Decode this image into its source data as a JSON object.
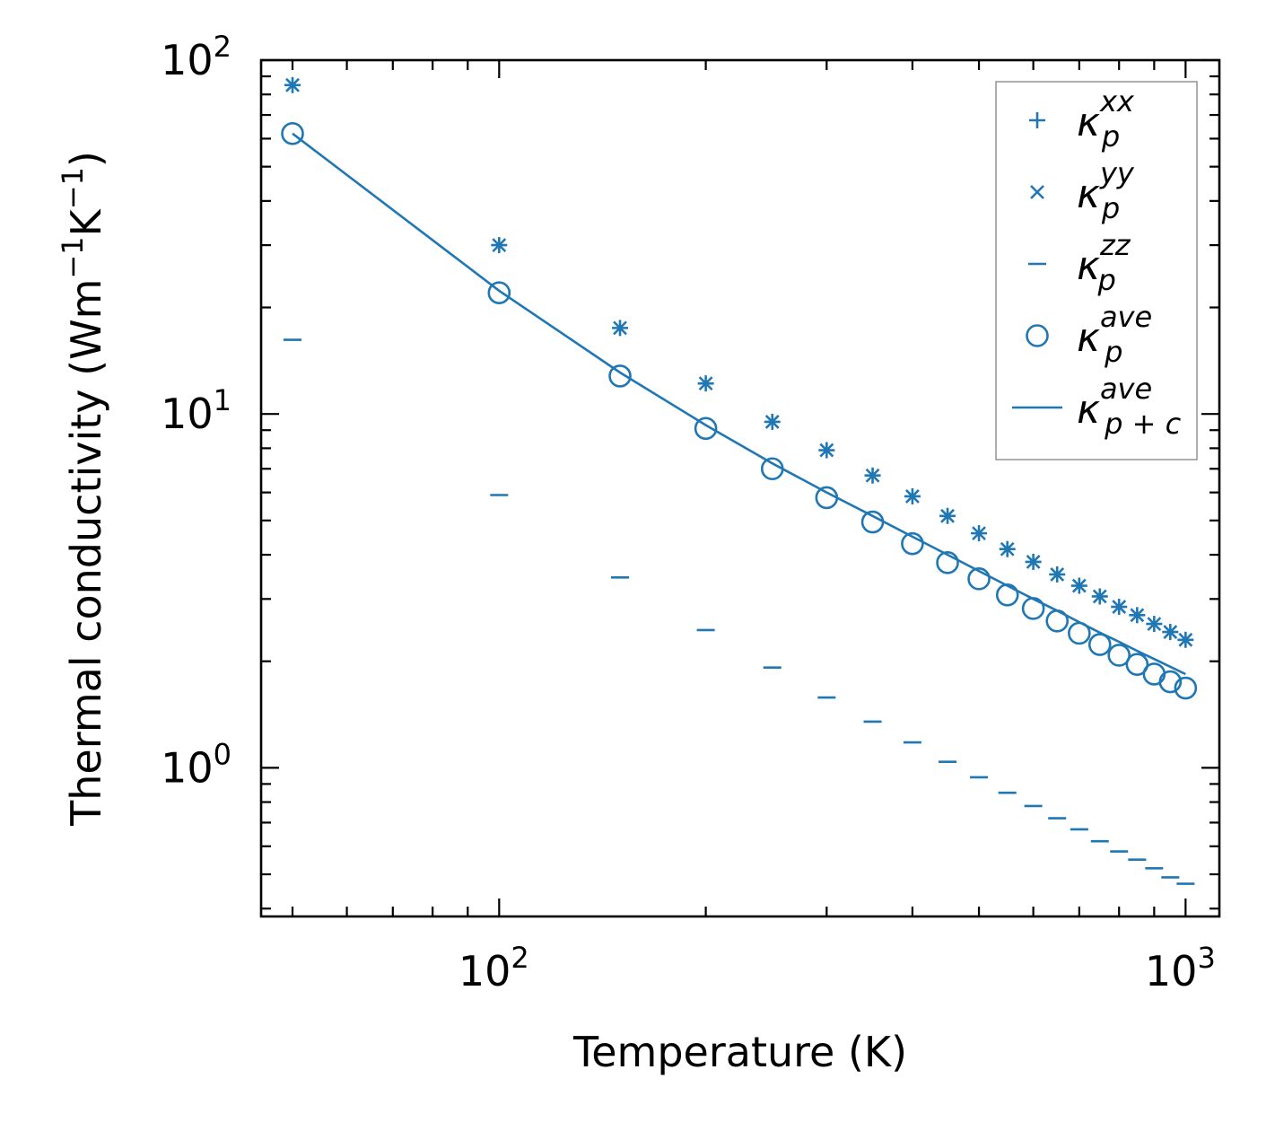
{
  "chart_data": {
    "type": "scatter",
    "scale": {
      "x": "log",
      "y": "log"
    },
    "xlim": [
      45,
      1120
    ],
    "ylim": [
      0.38,
      100
    ],
    "xlabel": "Temperature (K)",
    "ylabel": {
      "prefix": "Thermal conductivity (Wm",
      "exp1": "−1",
      "mid": "K",
      "exp2": "−1",
      "suffix": ")"
    },
    "x_ticks": [
      {
        "base": "10",
        "exp": "2",
        "value": 100
      },
      {
        "base": "10",
        "exp": "3",
        "value": 1000
      }
    ],
    "y_ticks": [
      {
        "base": "10",
        "exp": "0",
        "value": 1
      },
      {
        "base": "10",
        "exp": "1",
        "value": 10
      },
      {
        "base": "10",
        "exp": "2",
        "value": 100
      }
    ],
    "color": "#1f77b4",
    "x": [
      50,
      100,
      150,
      200,
      250,
      300,
      350,
      400,
      450,
      500,
      550,
      600,
      650,
      700,
      750,
      800,
      850,
      900,
      950,
      1000
    ],
    "series": [
      {
        "name": "kappa_p_xx",
        "marker": "plus",
        "values": [
          85.0,
          30.0,
          17.5,
          12.2,
          9.5,
          7.9,
          6.7,
          5.85,
          5.15,
          4.6,
          4.15,
          3.82,
          3.52,
          3.27,
          3.05,
          2.85,
          2.7,
          2.55,
          2.42,
          2.3
        ]
      },
      {
        "name": "kappa_p_yy",
        "marker": "x",
        "values": [
          85.0,
          30.0,
          17.5,
          12.2,
          9.5,
          7.9,
          6.7,
          5.85,
          5.15,
          4.6,
          4.15,
          3.82,
          3.52,
          3.27,
          3.05,
          2.85,
          2.7,
          2.55,
          2.42,
          2.3
        ]
      },
      {
        "name": "kappa_p_zz",
        "marker": "hline",
        "values": [
          16.2,
          5.9,
          3.45,
          2.45,
          1.92,
          1.58,
          1.35,
          1.18,
          1.04,
          0.94,
          0.85,
          0.78,
          0.72,
          0.67,
          0.62,
          0.58,
          0.55,
          0.52,
          0.49,
          0.47
        ]
      },
      {
        "name": "kappa_p_ave",
        "marker": "circle",
        "values": [
          62.0,
          22.0,
          12.8,
          9.1,
          7.0,
          5.8,
          4.95,
          4.3,
          3.8,
          3.42,
          3.08,
          2.82,
          2.6,
          2.4,
          2.23,
          2.08,
          1.96,
          1.84,
          1.75,
          1.68
        ]
      },
      {
        "name": "kappa_p+c_ave",
        "marker": "line",
        "values": [
          62.0,
          22.3,
          13.1,
          9.3,
          7.25,
          6.0,
          5.15,
          4.5,
          4.0,
          3.6,
          3.27,
          3.0,
          2.78,
          2.58,
          2.41,
          2.27,
          2.14,
          2.03,
          1.93,
          1.84
        ]
      }
    ],
    "legend": {
      "placement": "top-right",
      "entries": [
        {
          "symbol": "κ",
          "sub": "p",
          "sup": "xx",
          "marker": "plus"
        },
        {
          "symbol": "κ",
          "sub": "p",
          "sup": "yy",
          "marker": "x"
        },
        {
          "symbol": "κ",
          "sub": "p",
          "sup": "zz",
          "marker": "hline"
        },
        {
          "symbol": "κ",
          "sub": "p",
          "sup": "ave",
          "marker": "circle"
        },
        {
          "symbol": "κ",
          "sub": "p + c",
          "sup": "ave",
          "marker": "line"
        }
      ]
    }
  }
}
